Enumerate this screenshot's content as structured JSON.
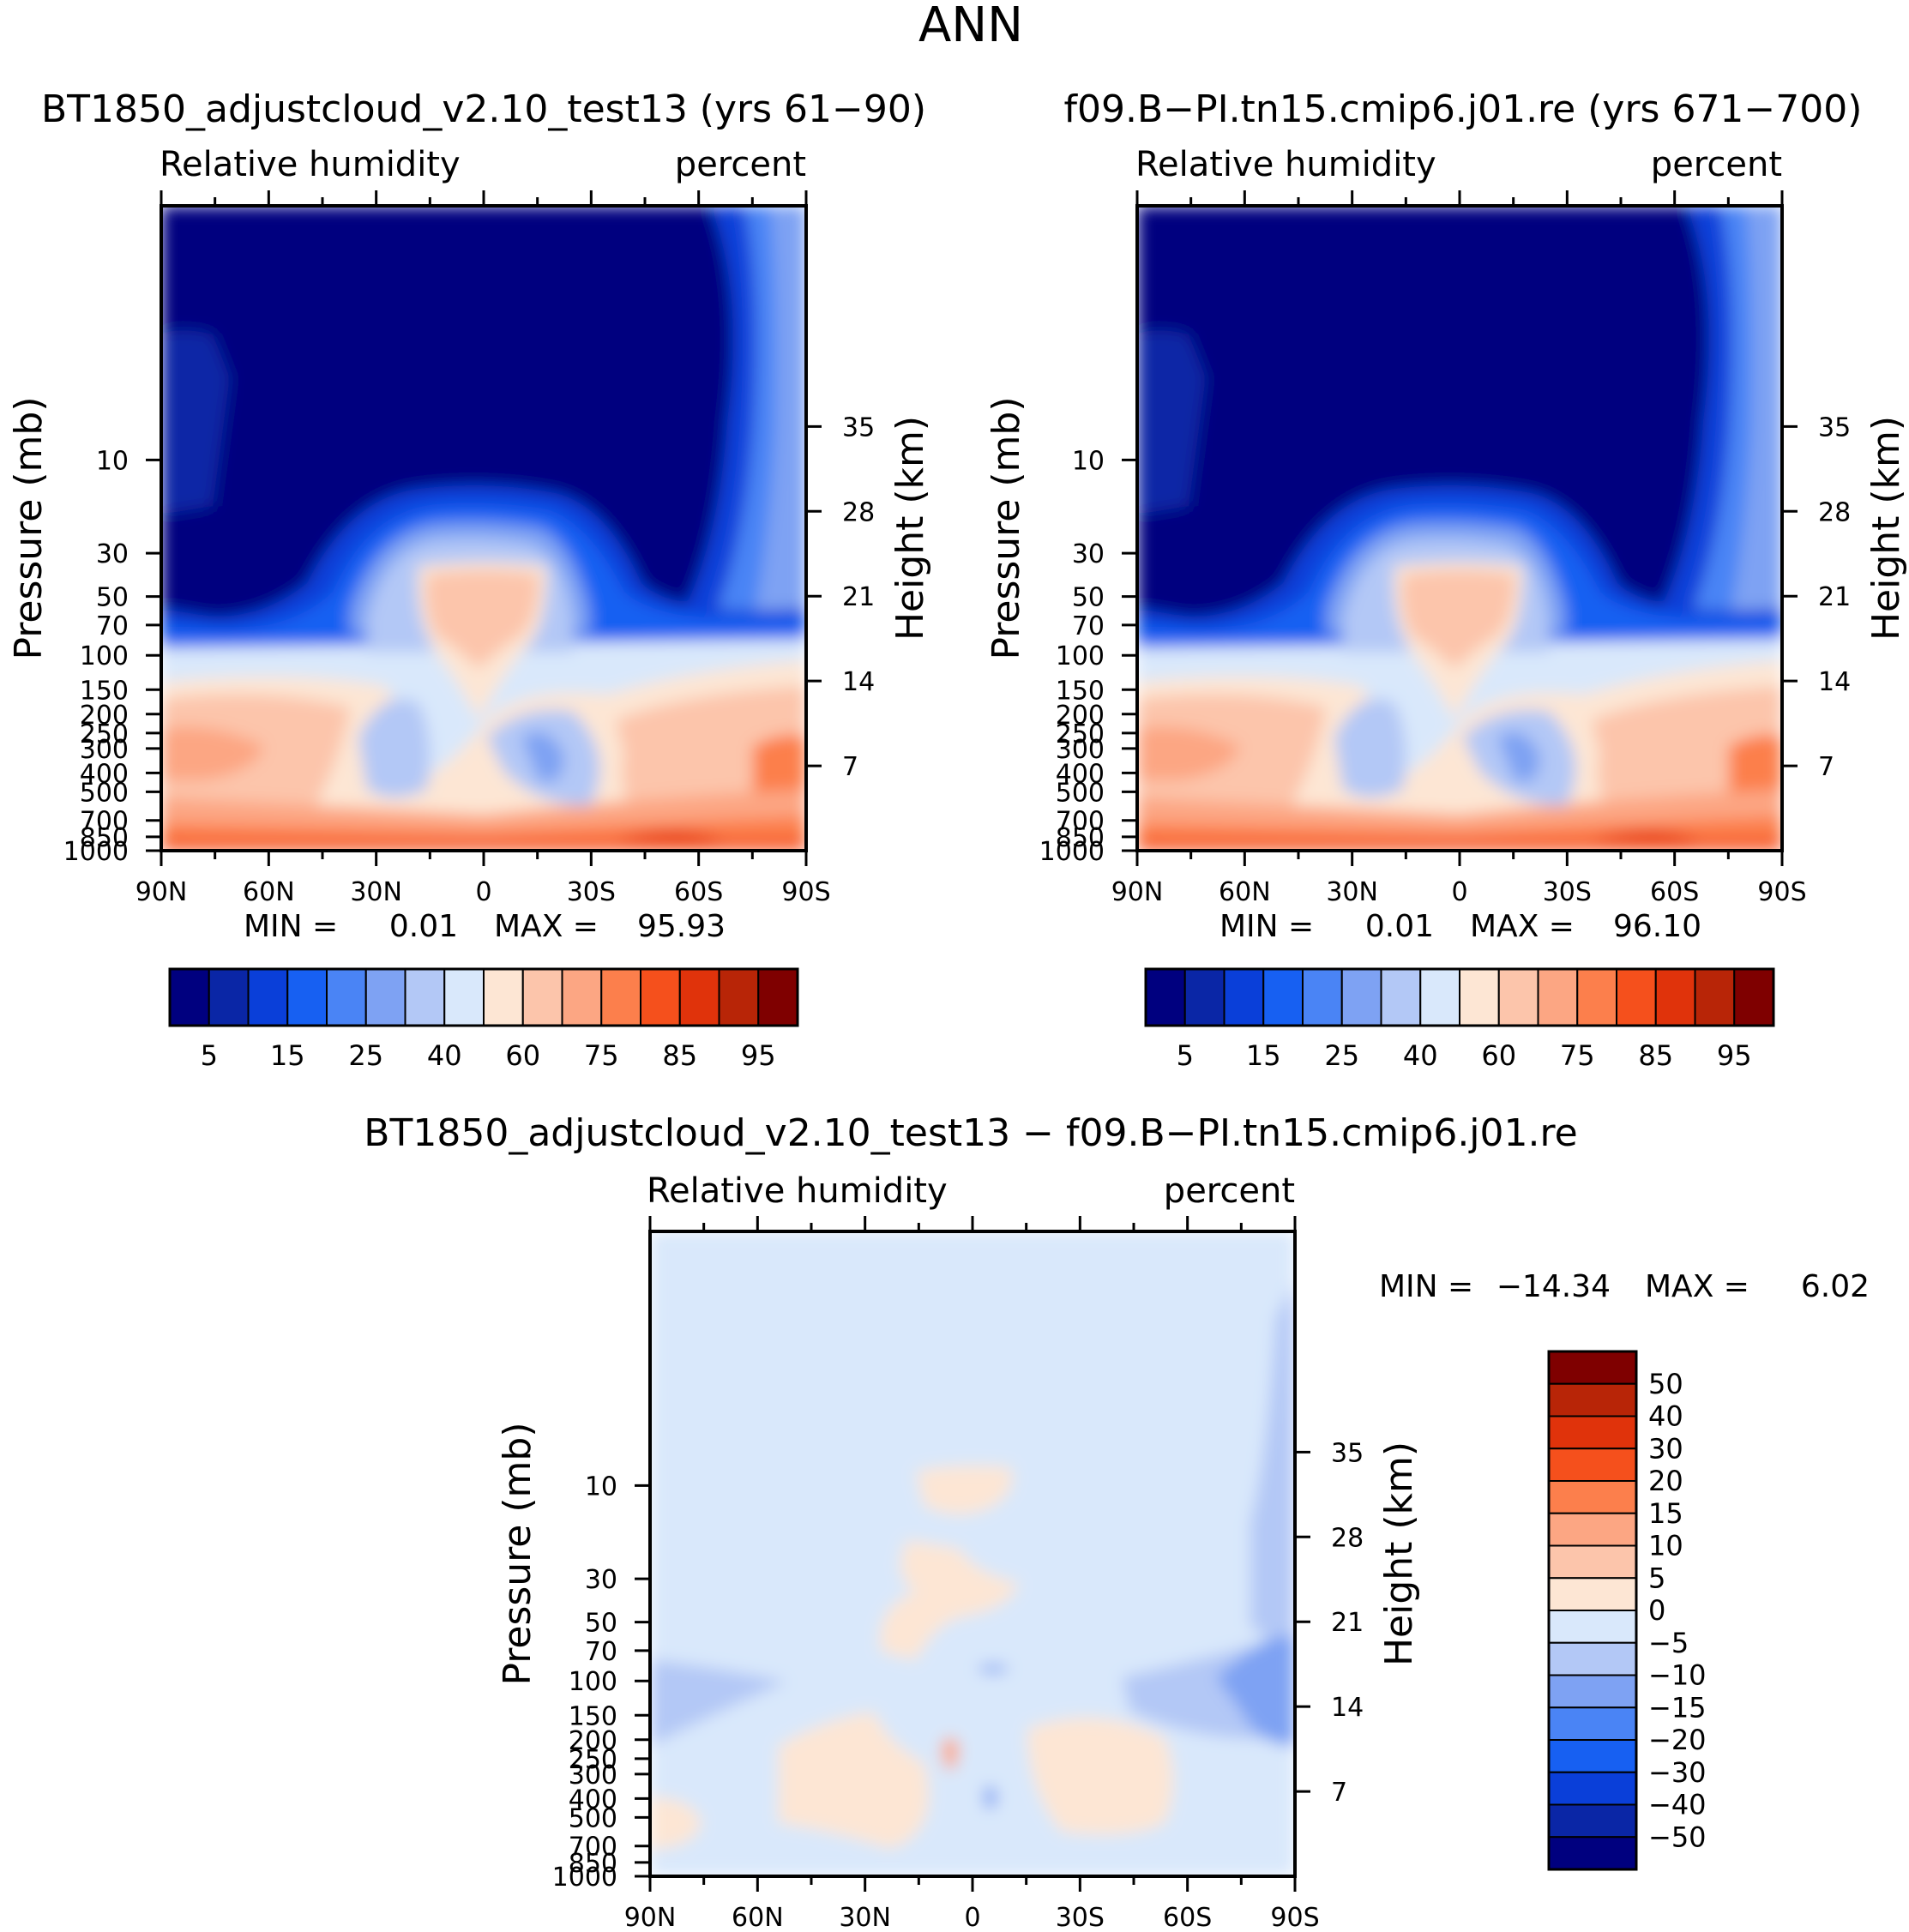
{
  "figure_title": "ANN",
  "chart_data": [
    {
      "type": "heatmap",
      "title": "BT1850_adjustcloud_v2.10_test13 (yrs 61−90)",
      "left_string": "Relative humidity",
      "right_string": "percent",
      "ylabel": "Pressure (mb)",
      "ylabel_right": "Height (km)",
      "x_ticks": [
        "90N",
        "60N",
        "30N",
        "0",
        "30S",
        "60S",
        "90S"
      ],
      "y_ticks": [
        "10",
        "30",
        "50",
        "70",
        "100",
        "150",
        "200",
        "250",
        "300",
        "400",
        "500",
        "700",
        "850",
        "1000"
      ],
      "y_ticks_right": [
        "35",
        "28",
        "21",
        "14",
        "7"
      ],
      "min_label": "MIN =",
      "min_value": "0.01",
      "max_label": "MAX =",
      "max_value": "95.93",
      "colorbar_levels": [
        5,
        10,
        15,
        20,
        25,
        30,
        40,
        50,
        60,
        70,
        75,
        80,
        85,
        90,
        95
      ],
      "colorbar_tick_labels": [
        "5",
        "15",
        "25",
        "40",
        "60",
        "75",
        "85",
        "95"
      ]
    },
    {
      "type": "heatmap",
      "title": "f09.B−PI.tn15.cmip6.j01.re (yrs 671−700)",
      "left_string": "Relative humidity",
      "right_string": "percent",
      "ylabel": "Pressure (mb)",
      "ylabel_right": "Height (km)",
      "x_ticks": [
        "90N",
        "60N",
        "30N",
        "0",
        "30S",
        "60S",
        "90S"
      ],
      "y_ticks": [
        "10",
        "30",
        "50",
        "70",
        "100",
        "150",
        "200",
        "250",
        "300",
        "400",
        "500",
        "700",
        "850",
        "1000"
      ],
      "y_ticks_right": [
        "35",
        "28",
        "21",
        "14",
        "7"
      ],
      "min_label": "MIN =",
      "min_value": "0.01",
      "max_label": "MAX =",
      "max_value": "96.10",
      "colorbar_levels": [
        5,
        10,
        15,
        20,
        25,
        30,
        40,
        50,
        60,
        70,
        75,
        80,
        85,
        90,
        95
      ],
      "colorbar_tick_labels": [
        "5",
        "15",
        "25",
        "40",
        "60",
        "75",
        "85",
        "95"
      ]
    },
    {
      "type": "heatmap",
      "title": "BT1850_adjustcloud_v2.10_test13 − f09.B−PI.tn15.cmip6.j01.re",
      "left_string": "Relative humidity",
      "right_string": "percent",
      "ylabel": "Pressure (mb)",
      "ylabel_right": "Height (km)",
      "x_ticks": [
        "90N",
        "60N",
        "30N",
        "0",
        "30S",
        "60S",
        "90S"
      ],
      "y_ticks": [
        "10",
        "30",
        "50",
        "70",
        "100",
        "150",
        "200",
        "250",
        "300",
        "400",
        "500",
        "700",
        "850",
        "1000"
      ],
      "y_ticks_right": [
        "35",
        "28",
        "21",
        "14",
        "7"
      ],
      "min_label": "MIN =",
      "min_value": "−14.34",
      "max_label": "MAX =",
      "max_value": "6.02",
      "colorbar_levels": [
        50,
        40,
        30,
        20,
        15,
        10,
        5,
        0,
        -5,
        -10,
        -15,
        -20,
        -30,
        -40,
        -50
      ],
      "colorbar_tick_labels": [
        "50",
        "40",
        "30",
        "20",
        "15",
        "10",
        "5",
        "0",
        "−5",
        "−10",
        "−15",
        "−20",
        "−30",
        "−40",
        "−50"
      ]
    }
  ],
  "colors": {
    "abs_scale": [
      "#00007f",
      "#0a26a6",
      "#0a3fd9",
      "#1760f2",
      "#4a84f5",
      "#7ea2f3",
      "#b3c8f6",
      "#d9e8fb",
      "#fde6d4",
      "#fcc5ab",
      "#fca683",
      "#fc7f4c",
      "#f5501c",
      "#e0330b",
      "#b82507",
      "#7f0000"
    ],
    "diff_scale": [
      "#7f0000",
      "#b82507",
      "#e0330b",
      "#f5501c",
      "#fc7f4c",
      "#fca683",
      "#fcc5ab",
      "#fde6d4",
      "#d9e8fb",
      "#b3c8f6",
      "#7ea2f3",
      "#4a84f5",
      "#1760f2",
      "#0a3fd9",
      "#0a26a6",
      "#00007f"
    ]
  }
}
